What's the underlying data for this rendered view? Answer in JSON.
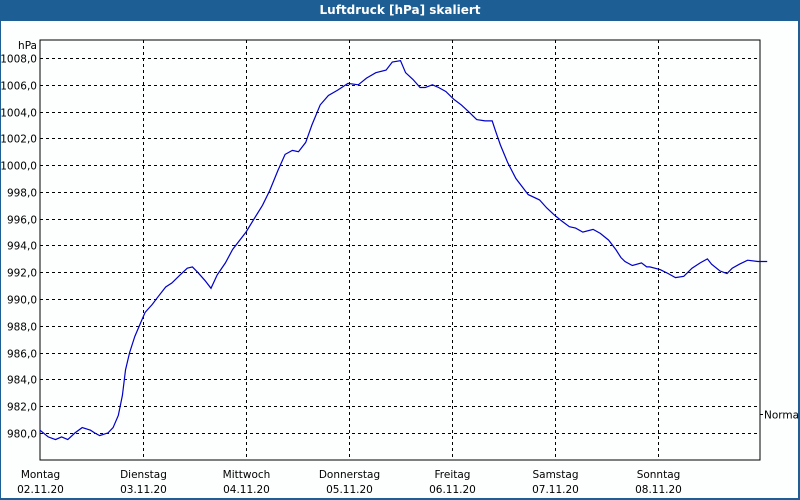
{
  "window": {
    "title": "Luftdruck [hPa] skaliert"
  },
  "colors": {
    "titlebar": "#1d5f94",
    "line": "#0000c8",
    "grid": "#000000",
    "background": "#fdfefe"
  },
  "chart_data": {
    "type": "line",
    "title": "Luftdruck [hPa] skaliert",
    "xlabel": "",
    "ylabel": "hPa",
    "ylim": [
      978.0,
      1009.0
    ],
    "yticks": [
      "980,0",
      "982,0",
      "984,0",
      "986,0",
      "988,0",
      "990,0",
      "992,0",
      "994,0",
      "996,0",
      "998,0",
      "1000,0",
      "1002,0",
      "1004,0",
      "1006,0",
      "1008,0"
    ],
    "x_categories": [
      {
        "day": "Montag",
        "date": "02.11.20"
      },
      {
        "day": "Dienstag",
        "date": "03.11.20"
      },
      {
        "day": "Mittwoch",
        "date": "04.11.20"
      },
      {
        "day": "Donnerstag",
        "date": "05.11.20"
      },
      {
        "day": "Freitag",
        "date": "06.11.20"
      },
      {
        "day": "Samstag",
        "date": "07.11.20"
      },
      {
        "day": "Sonntag",
        "date": "08.11.20"
      }
    ],
    "reference_line": {
      "label": "Normal",
      "value": 981.4
    },
    "grid": true,
    "legend": null,
    "series": [
      {
        "name": "Luftdruck",
        "x_days": [
          0.0,
          0.08,
          0.15,
          0.21,
          0.27,
          0.34,
          0.41,
          0.49,
          0.53,
          0.58,
          0.66,
          0.71,
          0.76,
          0.8,
          0.83,
          0.87,
          0.92,
          0.97,
          1.02,
          1.09,
          1.15,
          1.22,
          1.28,
          1.36,
          1.43,
          1.48,
          1.53,
          1.6,
          1.66,
          1.72,
          1.8,
          1.87,
          1.94,
          2.0,
          2.08,
          2.16,
          2.23,
          2.31,
          2.38,
          2.45,
          2.51,
          2.58,
          2.64,
          2.72,
          2.8,
          2.89,
          2.99,
          3.09,
          3.17,
          3.26,
          3.36,
          3.42,
          3.5,
          3.55,
          3.62,
          3.69,
          3.74,
          3.81,
          3.87,
          3.94,
          4.02,
          4.09,
          4.16,
          4.24,
          4.32,
          4.39,
          4.42,
          4.47,
          4.54,
          4.62,
          4.68,
          4.74,
          4.85,
          4.92,
          4.99,
          5.07,
          5.14,
          5.2,
          5.27,
          5.37,
          5.44,
          5.52,
          5.59,
          5.64,
          5.68,
          5.75,
          5.84,
          5.89,
          5.92,
          6.02,
          6.1,
          6.17,
          6.25,
          6.33,
          6.41,
          6.48,
          6.52,
          6.6,
          6.67,
          6.72,
          6.79,
          6.87,
          6.97,
          7.06
        ],
        "values": [
          980.2,
          979.7,
          979.5,
          979.7,
          979.5,
          980.0,
          980.4,
          980.2,
          980.0,
          979.8,
          980.0,
          980.4,
          981.3,
          982.8,
          984.7,
          986.0,
          987.2,
          988.1,
          989.0,
          989.6,
          990.2,
          990.9,
          991.2,
          991.8,
          992.3,
          992.4,
          992.0,
          991.4,
          990.8,
          991.8,
          992.7,
          993.7,
          994.4,
          995.0,
          996.0,
          997.0,
          998.1,
          999.6,
          1000.8,
          1001.1,
          1001.0,
          1001.7,
          1003.0,
          1004.5,
          1005.2,
          1005.6,
          1006.1,
          1006.0,
          1006.5,
          1006.9,
          1007.1,
          1007.7,
          1007.8,
          1006.9,
          1006.4,
          1005.8,
          1005.8,
          1006.0,
          1005.8,
          1005.5,
          1004.9,
          1004.5,
          1004.0,
          1003.4,
          1003.3,
          1003.3,
          1002.6,
          1001.5,
          1000.2,
          999.0,
          998.4,
          997.8,
          997.4,
          996.8,
          996.3,
          995.8,
          995.4,
          995.3,
          995.0,
          995.2,
          994.9,
          994.4,
          993.7,
          993.1,
          992.8,
          992.5,
          992.7,
          992.4,
          992.4,
          992.2,
          991.9,
          991.6,
          991.7,
          992.3,
          992.7,
          993.0,
          992.6,
          992.1,
          991.9,
          992.3,
          992.6,
          992.9,
          992.8,
          992.8
        ]
      }
    ]
  }
}
